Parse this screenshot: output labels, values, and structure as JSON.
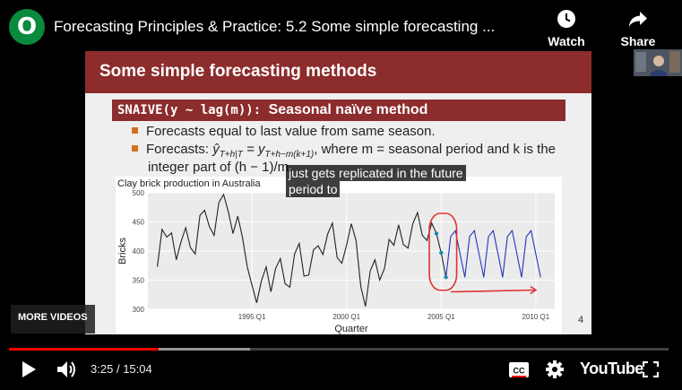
{
  "header": {
    "channel_logo_text": "O",
    "title": "Forecasting Principles & Practice: 5.2 Some simple forecasting ...",
    "watch_later_label": "Watch later",
    "share_label": "Share"
  },
  "slide": {
    "heading": "Some simple forecasting methods",
    "method_code": "SNAIVE(y ~ lag(m)):",
    "method_desc": "Seasonal naïve method",
    "bullet_1": "Forecasts equal to last value from same season.",
    "bullet_2_pre": "Forecasts: ",
    "bullet_2_formula": "ŷ",
    "bullet_2_sub": "T+h|T",
    "bullet_2_eq": " = y",
    "bullet_2_sub2": "T+h−m(k+1)",
    "bullet_2_post": ", where m = seasonal period and k is the",
    "bullet_2_cont": "integer part of (h − 1)/m.",
    "slide_number": "4"
  },
  "chart_data": {
    "type": "line",
    "title": "Clay brick production in Australia",
    "xlabel": "Quarter",
    "ylabel": "Bricks",
    "ylim": [
      300,
      500
    ],
    "y_ticks": [
      300,
      350,
      400,
      450,
      500
    ],
    "x_tick_labels": [
      "1995 Q1",
      "2000 Q1",
      "2005 Q1",
      "2010 Q1"
    ],
    "x_tick_values": [
      1995,
      2000,
      2005,
      2010
    ],
    "xlim": [
      1989.5,
      2011.0
    ],
    "grid": true,
    "series": [
      {
        "color": "#222222",
        "x": [
          1990.0,
          1990.25,
          1990.5,
          1990.75,
          1991.0,
          1991.25,
          1991.5,
          1991.75,
          1992.0,
          1992.25,
          1992.5,
          1992.75,
          1993.0,
          1993.25,
          1993.5,
          1993.75,
          1994.0,
          1994.25,
          1994.5,
          1994.75,
          1995.0,
          1995.25,
          1995.5,
          1995.75,
          1996.0,
          1996.25,
          1996.5,
          1996.75,
          1997.0,
          1997.25,
          1997.5,
          1997.75,
          1998.0,
          1998.25,
          1998.5,
          1998.75,
          1999.0,
          1999.25,
          1999.5,
          1999.75,
          2000.0,
          2000.25,
          2000.5,
          2000.75,
          2001.0,
          2001.25,
          2001.5,
          2001.75,
          2002.0,
          2002.25,
          2002.5,
          2002.75,
          2003.0,
          2003.25,
          2003.5,
          2003.75,
          2004.0,
          2004.25,
          2004.5,
          2004.75,
          2005.0,
          2005.25
        ],
        "y": [
          373,
          437,
          424,
          431,
          385,
          416,
          440,
          406,
          395,
          461,
          470,
          442,
          427,
          483,
          497,
          468,
          430,
          460,
          423,
          373,
          342,
          311,
          349,
          373,
          330,
          370,
          387,
          344,
          338,
          395,
          413,
          357,
          359,
          402,
          409,
          394,
          429,
          448,
          389,
          379,
          410,
          447,
          418,
          339,
          305,
          366,
          385,
          350,
          370,
          420,
          410,
          445,
          411,
          405,
          447,
          466,
          427,
          418,
          448,
          430,
          397,
          355
        ]
      },
      {
        "color": "#2233bb",
        "x": [
          2005.25,
          2005.5,
          2005.75,
          2006.0,
          2006.25,
          2006.5,
          2006.75,
          2007.0,
          2007.25,
          2007.5,
          2007.75,
          2008.0,
          2008.25,
          2008.5,
          2008.75,
          2009.0,
          2009.25,
          2009.5,
          2009.75,
          2010.0,
          2010.25
        ],
        "y": [
          355,
          425,
          435,
          395,
          355,
          425,
          435,
          395,
          355,
          425,
          435,
          395,
          355,
          425,
          435,
          395,
          355,
          425,
          435,
          395,
          355
        ]
      }
    ],
    "highlight_points": {
      "x": [
        2004.75,
        2005.0,
        2005.25
      ],
      "y": [
        430,
        397,
        355
      ],
      "color": "#1a8ab4"
    },
    "annotation_color": "#e03030"
  },
  "caption": {
    "line_1": "just gets replicated in the future",
    "line_2": "period to"
  },
  "more_videos_label": "MORE VIDEOS",
  "controls": {
    "progress_fraction": 0.227,
    "buffer_fraction": 0.365,
    "time_current": "3:25",
    "time_separator": "/",
    "time_total": "15:04",
    "youtube_label": "YouTube"
  },
  "colors": {
    "accent_red": "#ff0000",
    "slide_header": "#8c2c2c",
    "bullet_orange": "#d07020"
  }
}
